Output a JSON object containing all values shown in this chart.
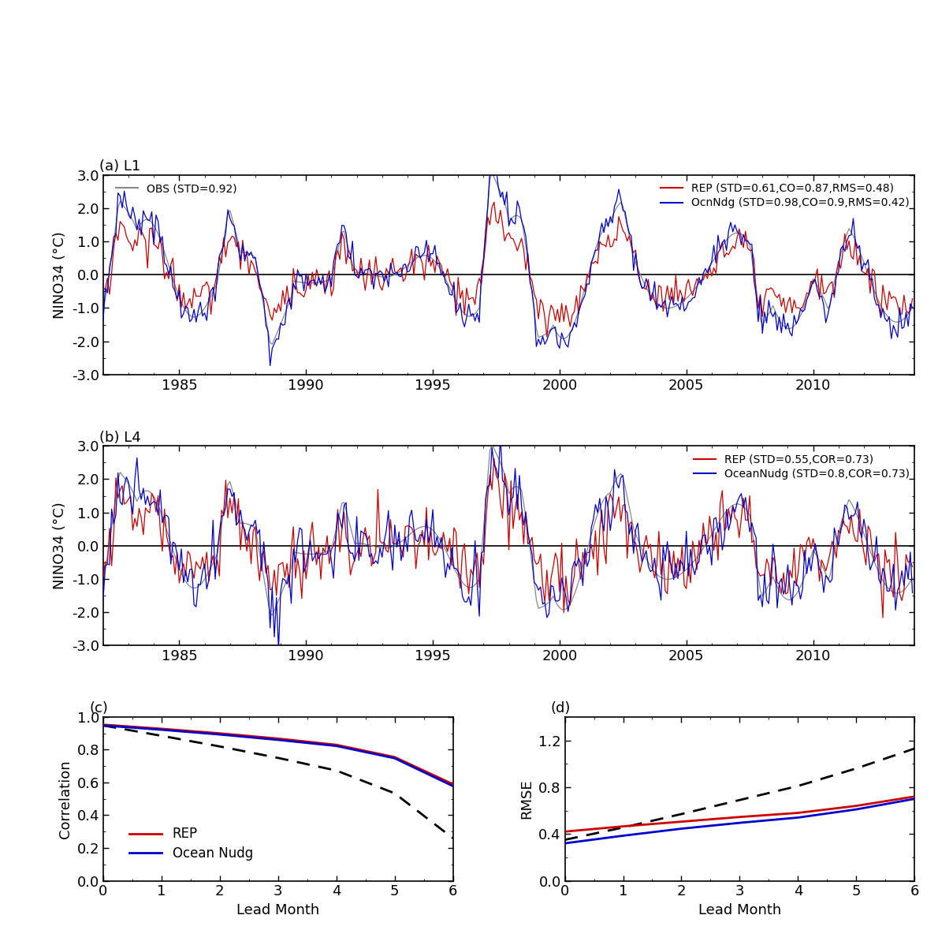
{
  "panel_a_title": "(a) L1",
  "panel_b_title": "(b) L4",
  "panel_c_title": "(c)",
  "panel_d_title": "(d)",
  "obs_label": "OBS (STD=0.92)",
  "rep_a_label": "REP (STD=0.61,CO=0.87,RMS=0.48)",
  "ocnndg_a_label": "OcnNdg (STD=0.98,CO=0.9,RMS=0.42)",
  "rep_b_label": "REP (STD=0.55,COR=0.73)",
  "oceannudg_b_label": "OceanNudg (STD=0.8,COR=0.73)",
  "rep_cd_label": "REP",
  "oceannudg_cd_label": "Ocean Nudg",
  "ylabel_ts": "NINO34 (°C)",
  "ylabel_c": "Correlation",
  "ylabel_d": "RMSE",
  "xlabel_cd": "Lead Month",
  "ylim_ts": [
    -3.0,
    3.0
  ],
  "yticks_ts": [
    -3.0,
    -2.0,
    -1.0,
    0.0,
    1.0,
    2.0,
    3.0
  ],
  "ylim_c": [
    0.0,
    1.0
  ],
  "yticks_c": [
    0.0,
    0.2,
    0.4,
    0.6,
    0.8,
    1.0
  ],
  "ylim_d": [
    0.0,
    1.4
  ],
  "yticks_d": [
    0.0,
    0.4,
    0.8,
    1.2
  ],
  "xlim_cd": [
    0,
    6
  ],
  "xticks_cd": [
    0,
    1,
    2,
    3,
    4,
    5,
    6
  ],
  "obs_color": "#888888",
  "rep_color": "#cc0000",
  "ocnndg_color": "#0000cc",
  "dashed_color": "#000000",
  "year_start": 1982,
  "year_end": 2013,
  "ts_linewidth": 0.9,
  "cd_linewidth": 2.0,
  "corr_rep": [
    0.953,
    0.928,
    0.9,
    0.868,
    0.83,
    0.755,
    0.59
  ],
  "corr_nudg": [
    0.948,
    0.922,
    0.893,
    0.86,
    0.823,
    0.748,
    0.578
  ],
  "corr_dashed": [
    0.948,
    0.885,
    0.82,
    0.75,
    0.673,
    0.534,
    0.26
  ],
  "rmse_rep": [
    0.42,
    0.465,
    0.505,
    0.545,
    0.58,
    0.64,
    0.72
  ],
  "rmse_nudg": [
    0.32,
    0.385,
    0.445,
    0.495,
    0.54,
    0.61,
    0.7
  ],
  "rmse_dashed": [
    0.35,
    0.455,
    0.57,
    0.69,
    0.81,
    0.96,
    1.13
  ],
  "background_color": "#ffffff",
  "font_family": "DejaVu Sans",
  "fontsize": 13
}
